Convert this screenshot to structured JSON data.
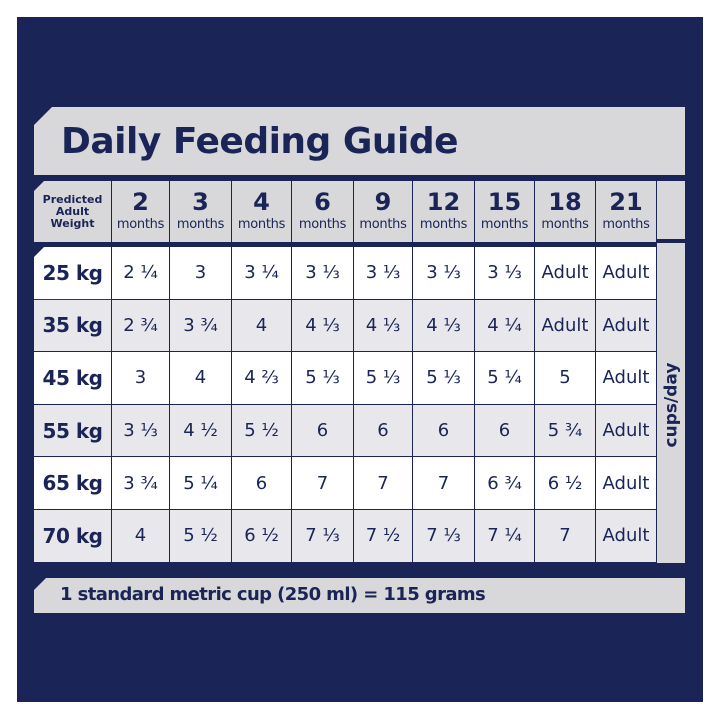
{
  "title": "Daily Feeding Guide",
  "header": {
    "weight_label": [
      "Predicted",
      "Adult",
      "Weight"
    ],
    "unit": "months",
    "ages": [
      "2",
      "3",
      "4",
      "6",
      "9",
      "12",
      "15",
      "18",
      "21"
    ]
  },
  "side_label": "cups/day",
  "rows": [
    {
      "weight": "25 kg",
      "values": [
        "2 ¼",
        "3",
        "3 ¼",
        "3 ⅓",
        "3 ⅓",
        "3 ⅓",
        "3 ⅓",
        "Adult",
        "Adult"
      ]
    },
    {
      "weight": "35 kg",
      "values": [
        "2 ¾",
        "3 ¾",
        "4",
        "4 ⅓",
        "4 ⅓",
        "4 ⅓",
        "4 ¼",
        "Adult",
        "Adult"
      ]
    },
    {
      "weight": "45 kg",
      "values": [
        "3",
        "4",
        "4 ⅔",
        "5 ⅓",
        "5 ⅓",
        "5 ⅓",
        "5 ¼",
        "5",
        "Adult"
      ]
    },
    {
      "weight": "55 kg",
      "values": [
        "3 ⅓",
        "4 ½",
        "5 ½",
        "6",
        "6",
        "6",
        "6",
        "5 ¾",
        "Adult"
      ]
    },
    {
      "weight": "65 kg",
      "values": [
        "3 ¾",
        "5 ¼",
        "6",
        "7",
        "7",
        "7",
        "6 ¾",
        "6 ½",
        "Adult"
      ]
    },
    {
      "weight": "70 kg",
      "values": [
        "4",
        "5 ½",
        "6 ½",
        "7 ⅓",
        "7 ½",
        "7 ⅓",
        "7 ¼",
        "7",
        "Adult"
      ]
    }
  ],
  "footer_note": "1 standard metric cup (250 ml) = 115 grams",
  "colors": {
    "navy": "#1a2457",
    "banner_gray": "#d8d8da",
    "row_light": "#ffffff",
    "row_alt": "#e8e8ec"
  }
}
